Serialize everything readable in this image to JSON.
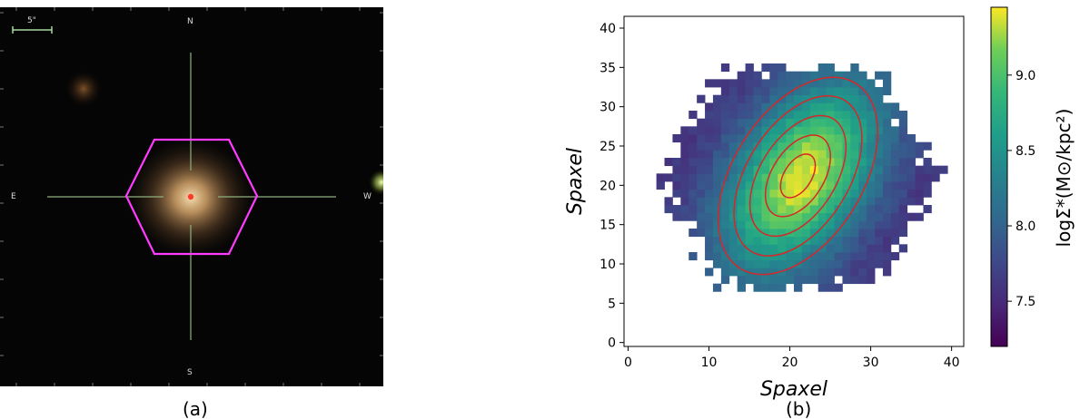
{
  "panel_a": {
    "caption": "(a)",
    "scale_label": "5\"",
    "compass": {
      "n": "N",
      "s": "S",
      "e": "E",
      "w": "W"
    },
    "colors": {
      "hexagon": "#ff3bff",
      "crosshair": "#8fb07f",
      "center_dot": "#ff3b2b",
      "sky": "#050505",
      "scale_bar": "#a8d8a0"
    }
  },
  "panel_b": {
    "caption": "(b)",
    "colorbar_label": "logΣ*(M⊙/kpc²)",
    "colormap": "viridis"
  },
  "chart_data": [
    {
      "type": "heatmap",
      "title": "",
      "xlabel": "Spaxel",
      "ylabel": "Spaxel",
      "xlim": [
        -0.5,
        41.5
      ],
      "ylim": [
        -0.5,
        41.5
      ],
      "xticks": [
        0,
        10,
        20,
        30,
        40
      ],
      "yticks": [
        0,
        5,
        10,
        15,
        20,
        25,
        30,
        35,
        40
      ],
      "colorbar": {
        "label": "logΣ*(M⊙/kpc²)",
        "vmin": 7.2,
        "vmax": 9.45,
        "ticks": [
          7.5,
          8.0,
          8.5,
          9.0
        ]
      },
      "map_model": {
        "center": [
          21.5,
          21.0
        ],
        "peak_value": 9.4,
        "edge_value": 7.55,
        "footprint": "hexagonal",
        "footprint_center": [
          21.0,
          21.0
        ],
        "footprint_radius_x": 16.5,
        "footprint_radius_y": 15.5
      },
      "contours": {
        "color": "#d62728",
        "levels": [
          {
            "center": [
              21.0,
              21.2
            ],
            "a": 13.5,
            "b": 8.0,
            "angle_deg": 58
          },
          {
            "center": [
              21.0,
              21.2
            ],
            "a": 11.0,
            "b": 6.3,
            "angle_deg": 58
          },
          {
            "center": [
              21.0,
              21.2
            ],
            "a": 8.3,
            "b": 4.7,
            "angle_deg": 58
          },
          {
            "center": [
              21.0,
              21.2
            ],
            "a": 5.6,
            "b": 3.2,
            "angle_deg": 58
          },
          {
            "center": [
              21.0,
              21.2
            ],
            "a": 3.0,
            "b": 1.7,
            "angle_deg": 58
          }
        ]
      }
    }
  ]
}
